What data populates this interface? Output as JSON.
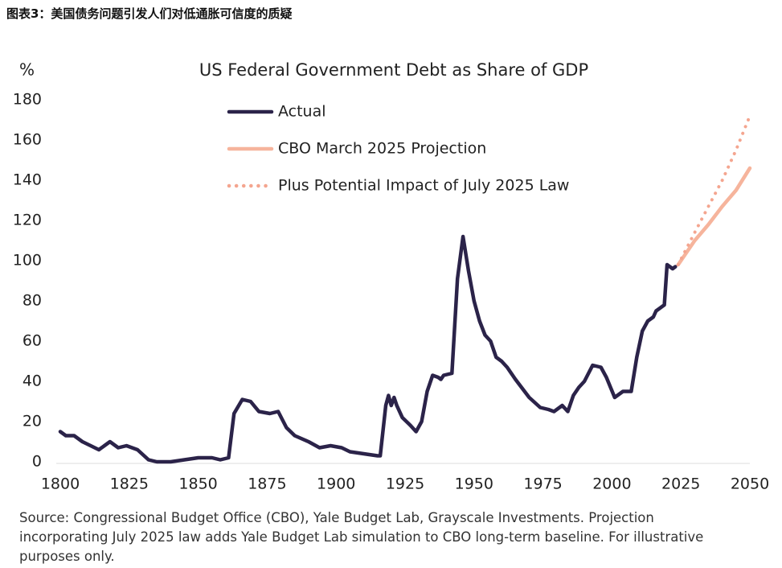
{
  "header": {
    "title": "图表3：美国债务问题引发人们对低通胀可信度的质疑"
  },
  "chart_data": {
    "type": "line",
    "title": "US Federal Government Debt as Share of GDP",
    "y_label": "%",
    "xlim": [
      1800,
      2050
    ],
    "xticks": [
      1800,
      1825,
      1850,
      1875,
      1900,
      1925,
      1950,
      1975,
      2000,
      2025,
      2050
    ],
    "ylim": [
      0,
      180
    ],
    "yticks": [
      0,
      20,
      40,
      60,
      80,
      100,
      120,
      140,
      160,
      180
    ],
    "legend": "upper-left",
    "series": [
      {
        "name": "Actual",
        "color": "#2b2349",
        "dash": "solid",
        "x": [
          1800,
          1802,
          1805,
          1808,
          1811,
          1814,
          1816,
          1818,
          1821,
          1824,
          1828,
          1832,
          1835,
          1840,
          1845,
          1850,
          1855,
          1858,
          1861,
          1863,
          1866,
          1869,
          1872,
          1876,
          1879,
          1882,
          1885,
          1890,
          1894,
          1898,
          1902,
          1905,
          1910,
          1915,
          1916,
          1918,
          1919,
          1920,
          1921,
          1922,
          1924,
          1927,
          1929,
          1931,
          1933,
          1935,
          1937,
          1938,
          1939,
          1942,
          1944,
          1946,
          1948,
          1950,
          1952,
          1954,
          1956,
          1958,
          1960,
          1962,
          1965,
          1970,
          1974,
          1977,
          1979,
          1982,
          1984,
          1986,
          1988,
          1990,
          1993,
          1996,
          1998,
          2001,
          2004,
          2007,
          2009,
          2011,
          2013,
          2015,
          2016,
          2019,
          2020,
          2022,
          2023
        ],
        "values": [
          15,
          13,
          13,
          10,
          8,
          6,
          8,
          10,
          7,
          8,
          6,
          1,
          0,
          0,
          1,
          2,
          2,
          1,
          2,
          24,
          31,
          30,
          25,
          24,
          25,
          17,
          13,
          10,
          7,
          8,
          7,
          5,
          4,
          3,
          3,
          28,
          33,
          28,
          32,
          28,
          22,
          18,
          15,
          20,
          35,
          43,
          42,
          41,
          43,
          44,
          91,
          112,
          95,
          80,
          70,
          63,
          60,
          52,
          50,
          47,
          41,
          32,
          27,
          26,
          25,
          28,
          25,
          33,
          37,
          40,
          48,
          47,
          42,
          32,
          35,
          35,
          52,
          65,
          70,
          72,
          75,
          78,
          98,
          96,
          97
        ]
      },
      {
        "name": "CBO March 2025 Projection",
        "color": "#f6b49c",
        "dash": "solid",
        "x": [
          2024,
          2030,
          2035,
          2040,
          2045,
          2050
        ],
        "values": [
          98,
          110,
          118,
          127,
          135,
          146
        ]
      },
      {
        "name": "Plus Potential Impact of July 2025 Law",
        "color": "#f4a58f",
        "dash": "dotted",
        "x": [
          2024,
          2030,
          2035,
          2040,
          2045,
          2050
        ],
        "values": [
          98,
          114,
          127,
          140,
          155,
          172
        ]
      }
    ]
  },
  "source": "Source: Congressional Budget Office (CBO), Yale Budget Lab, Grayscale Investments. Projection incorporating July 2025 law adds Yale Budget Lab simulation to CBO long-term baseline. For illustrative purposes only."
}
